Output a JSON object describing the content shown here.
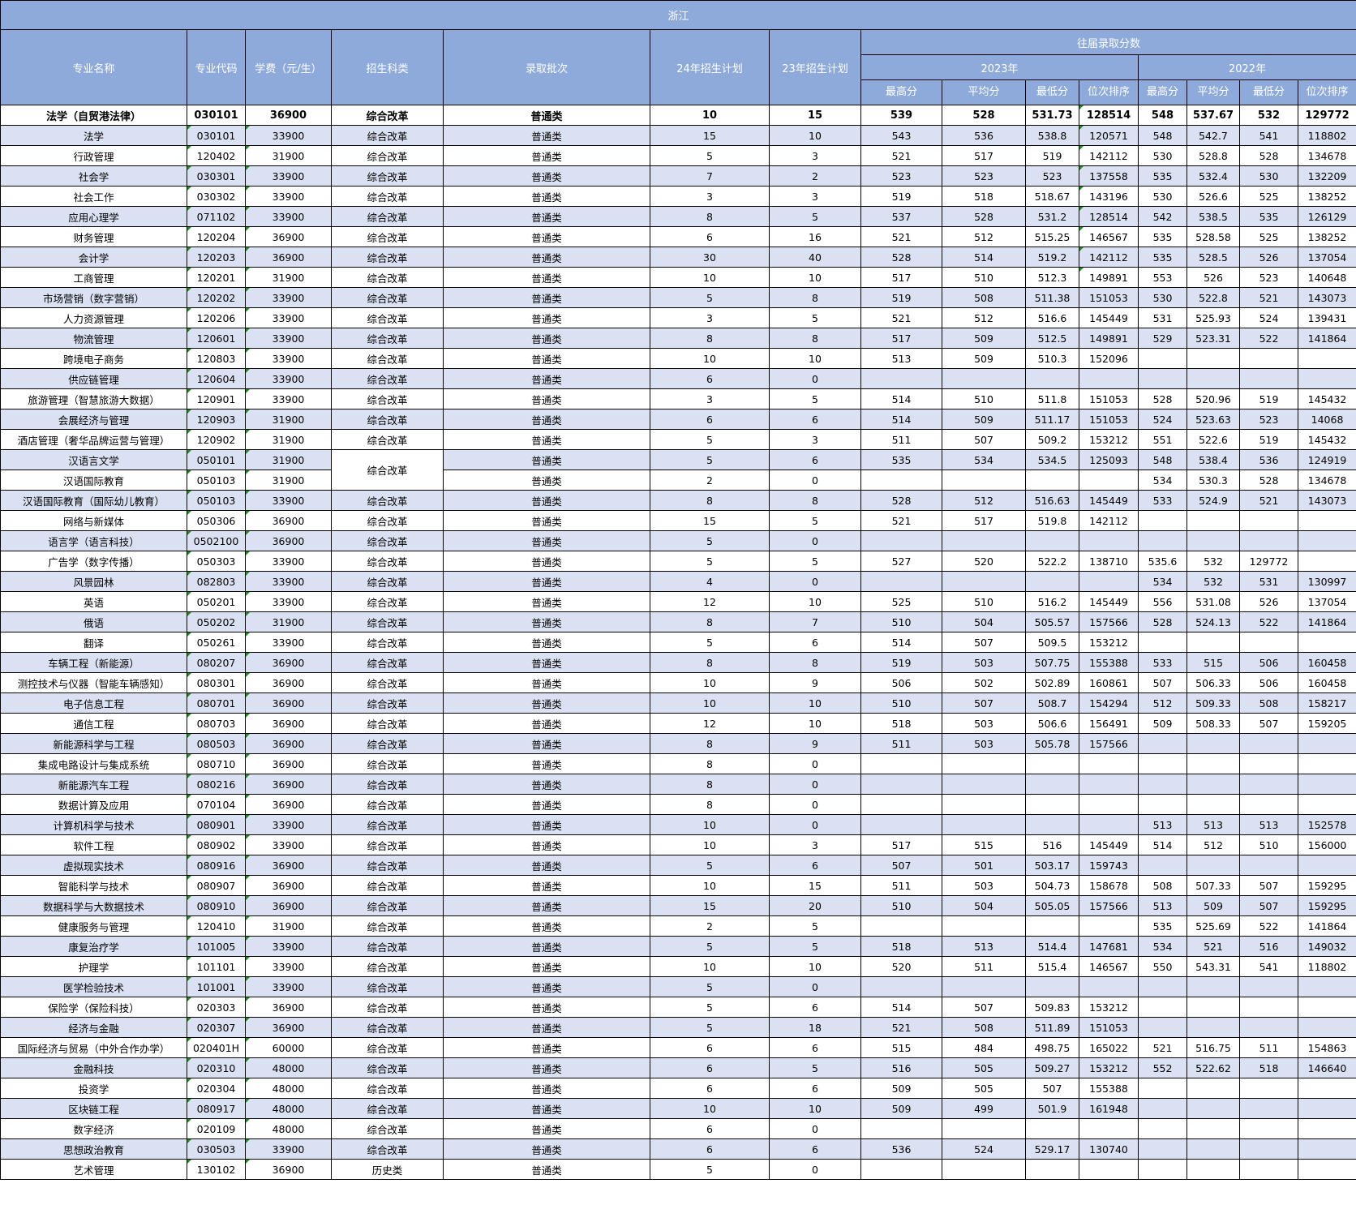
{
  "title": "浙江",
  "headers": {
    "name": "专业名称",
    "code": "专业代码",
    "fee": "学费（元/生）",
    "subject": "招生科类",
    "batch": "录取批次",
    "plan24": "24年招生计划",
    "plan23": "23年招生计划",
    "history": "往届录取分数",
    "year2023": "2023年",
    "year2022": "2022年",
    "max": "最高分",
    "avg": "平均分",
    "min": "最低分",
    "rank": "位次排序"
  },
  "colors": {
    "header_bg": "#8eaadb",
    "alt_row_bg": "#d9e1f2",
    "marker": "#1a8f1a"
  },
  "rows": [
    [
      "法学（自贸港法律）",
      "030101",
      "36900",
      "综合改革",
      "普通类",
      "10",
      "15",
      "539",
      "528",
      "531.73",
      "128514",
      "548",
      "537.67",
      "532",
      "129772"
    ],
    [
      "法学",
      "030101",
      "33900",
      "综合改革",
      "普通类",
      "15",
      "10",
      "543",
      "536",
      "538.8",
      "120571",
      "548",
      "542.7",
      "541",
      "118802"
    ],
    [
      "行政管理",
      "120402",
      "31900",
      "综合改革",
      "普通类",
      "5",
      "3",
      "521",
      "517",
      "519",
      "142112",
      "530",
      "528.8",
      "528",
      "134678"
    ],
    [
      "社会学",
      "030301",
      "33900",
      "综合改革",
      "普通类",
      "7",
      "2",
      "523",
      "523",
      "523",
      "137558",
      "535",
      "532.4",
      "530",
      "132209"
    ],
    [
      "社会工作",
      "030302",
      "33900",
      "综合改革",
      "普通类",
      "3",
      "3",
      "519",
      "518",
      "518.67",
      "143196",
      "530",
      "526.6",
      "525",
      "138252"
    ],
    [
      "应用心理学",
      "071102",
      "33900",
      "综合改革",
      "普通类",
      "8",
      "5",
      "537",
      "528",
      "531.2",
      "128514",
      "542",
      "538.5",
      "535",
      "126129"
    ],
    [
      "财务管理",
      "120204",
      "36900",
      "综合改革",
      "普通类",
      "6",
      "16",
      "521",
      "512",
      "515.25",
      "146567",
      "535",
      "528.58",
      "525",
      "138252"
    ],
    [
      "会计学",
      "120203",
      "36900",
      "综合改革",
      "普通类",
      "30",
      "40",
      "528",
      "514",
      "519.2",
      "142112",
      "535",
      "528.5",
      "526",
      "137054"
    ],
    [
      "工商管理",
      "120201",
      "31900",
      "综合改革",
      "普通类",
      "10",
      "10",
      "517",
      "510",
      "512.3",
      "149891",
      "553",
      "526",
      "523",
      "140648"
    ],
    [
      "市场营销（数字营销）",
      "120202",
      "33900",
      "综合改革",
      "普通类",
      "5",
      "8",
      "519",
      "508",
      "511.38",
      "151053",
      "530",
      "522.8",
      "521",
      "143073"
    ],
    [
      "人力资源管理",
      "120206",
      "33900",
      "综合改革",
      "普通类",
      "3",
      "5",
      "521",
      "512",
      "516.6",
      "145449",
      "531",
      "525.93",
      "524",
      "139431"
    ],
    [
      "物流管理",
      "120601",
      "33900",
      "综合改革",
      "普通类",
      "8",
      "8",
      "517",
      "509",
      "512.5",
      "149891",
      "529",
      "523.31",
      "522",
      "141864"
    ],
    [
      "跨境电子商务",
      "120803",
      "33900",
      "综合改革",
      "普通类",
      "10",
      "10",
      "513",
      "509",
      "510.3",
      "152096",
      "",
      "",
      "",
      ""
    ],
    [
      "供应链管理",
      "120604",
      "33900",
      "综合改革",
      "普通类",
      "6",
      "0",
      "",
      "",
      "",
      "",
      "",
      "",
      "",
      ""
    ],
    [
      "旅游管理（智慧旅游大数据）",
      "120901",
      "33900",
      "综合改革",
      "普通类",
      "3",
      "5",
      "514",
      "510",
      "511.8",
      "151053",
      "528",
      "520.96",
      "519",
      "145432"
    ],
    [
      "会展经济与管理",
      "120903",
      "31900",
      "综合改革",
      "普通类",
      "6",
      "6",
      "514",
      "509",
      "511.17",
      "151053",
      "524",
      "523.63",
      "523",
      "14068"
    ],
    [
      "酒店管理（奢华品牌运营与管理）",
      "120902",
      "31900",
      "综合改革",
      "普通类",
      "5",
      "3",
      "511",
      "507",
      "509.2",
      "153212",
      "551",
      "522.6",
      "519",
      "145432"
    ],
    [
      "汉语言文学",
      "050101",
      "31900",
      "综合改革",
      "普通类",
      "5",
      "6",
      "535",
      "534",
      "534.5",
      "125093",
      "548",
      "538.4",
      "536",
      "124919"
    ],
    [
      "汉语国际教育",
      "050103",
      "31900",
      "",
      "普通类",
      "2",
      "0",
      "",
      "",
      "",
      "",
      "534",
      "530.3",
      "528",
      "134678"
    ],
    [
      "汉语国际教育（国际幼儿教育）",
      "050103",
      "33900",
      "综合改革",
      "普通类",
      "8",
      "8",
      "528",
      "512",
      "516.63",
      "145449",
      "533",
      "524.9",
      "521",
      "143073"
    ],
    [
      "网络与新媒体",
      "050306",
      "36900",
      "综合改革",
      "普通类",
      "15",
      "5",
      "521",
      "517",
      "519.8",
      "142112",
      "",
      "",
      "",
      ""
    ],
    [
      "语言学（语言科技）",
      "0502100",
      "36900",
      "综合改革",
      "普通类",
      "5",
      "0",
      "",
      "",
      "",
      "",
      "",
      "",
      "",
      ""
    ],
    [
      "广告学（数字传播）",
      "050303",
      "33900",
      "综合改革",
      "普通类",
      "5",
      "5",
      "527",
      "520",
      "522.2",
      "138710",
      "535.6",
      "532",
      "129772",
      ""
    ],
    [
      "风景园林",
      "082803",
      "33900",
      "综合改革",
      "普通类",
      "4",
      "0",
      "",
      "",
      "",
      "",
      "534",
      "532",
      "531",
      "130997"
    ],
    [
      "英语",
      "050201",
      "33900",
      "综合改革",
      "普通类",
      "12",
      "10",
      "525",
      "510",
      "516.2",
      "145449",
      "556",
      "531.08",
      "526",
      "137054"
    ],
    [
      "俄语",
      "050202",
      "31900",
      "综合改革",
      "普通类",
      "8",
      "7",
      "510",
      "504",
      "505.57",
      "157566",
      "528",
      "524.13",
      "522",
      "141864"
    ],
    [
      "翻译",
      "050261",
      "33900",
      "综合改革",
      "普通类",
      "5",
      "6",
      "514",
      "507",
      "509.5",
      "153212",
      "",
      "",
      "",
      ""
    ],
    [
      "车辆工程（新能源）",
      "080207",
      "36900",
      "综合改革",
      "普通类",
      "8",
      "8",
      "519",
      "503",
      "507.75",
      "155388",
      "533",
      "515",
      "506",
      "160458"
    ],
    [
      "测控技术与仪器（智能车辆感知）",
      "080301",
      "36900",
      "综合改革",
      "普通类",
      "10",
      "9",
      "506",
      "502",
      "502.89",
      "160861",
      "507",
      "506.33",
      "506",
      "160458"
    ],
    [
      "电子信息工程",
      "080701",
      "36900",
      "综合改革",
      "普通类",
      "10",
      "10",
      "510",
      "507",
      "508.7",
      "154294",
      "512",
      "509.33",
      "508",
      "158217"
    ],
    [
      "通信工程",
      "080703",
      "36900",
      "综合改革",
      "普通类",
      "12",
      "10",
      "518",
      "503",
      "506.6",
      "156491",
      "509",
      "508.33",
      "507",
      "159205"
    ],
    [
      "新能源科学与工程",
      "080503",
      "36900",
      "综合改革",
      "普通类",
      "8",
      "9",
      "511",
      "503",
      "505.78",
      "157566",
      "",
      "",
      "",
      ""
    ],
    [
      "集成电路设计与集成系统",
      "080710",
      "36900",
      "综合改革",
      "普通类",
      "8",
      "0",
      "",
      "",
      "",
      "",
      "",
      "",
      "",
      ""
    ],
    [
      "新能源汽车工程",
      "080216",
      "36900",
      "综合改革",
      "普通类",
      "8",
      "0",
      "",
      "",
      "",
      "",
      "",
      "",
      "",
      ""
    ],
    [
      "数据计算及应用",
      "070104",
      "36900",
      "综合改革",
      "普通类",
      "8",
      "0",
      "",
      "",
      "",
      "",
      "",
      "",
      "",
      ""
    ],
    [
      "计算机科学与技术",
      "080901",
      "33900",
      "综合改革",
      "普通类",
      "10",
      "0",
      "",
      "",
      "",
      "",
      "513",
      "513",
      "513",
      "152578"
    ],
    [
      "软件工程",
      "080902",
      "33900",
      "综合改革",
      "普通类",
      "10",
      "3",
      "517",
      "515",
      "516",
      "145449",
      "514",
      "512",
      "510",
      "156000"
    ],
    [
      "虚拟现实技术",
      "080916",
      "36900",
      "综合改革",
      "普通类",
      "5",
      "6",
      "507",
      "501",
      "503.17",
      "159743",
      "",
      "",
      "",
      ""
    ],
    [
      "智能科学与技术",
      "080907",
      "36900",
      "综合改革",
      "普通类",
      "10",
      "15",
      "511",
      "503",
      "504.73",
      "158678",
      "508",
      "507.33",
      "507",
      "159295"
    ],
    [
      "数据科学与大数据技术",
      "080910",
      "36900",
      "综合改革",
      "普通类",
      "15",
      "20",
      "510",
      "504",
      "505.05",
      "157566",
      "513",
      "509",
      "507",
      "159295"
    ],
    [
      "健康服务与管理",
      "120410",
      "31900",
      "综合改革",
      "普通类",
      "2",
      "5",
      "",
      "",
      "",
      "",
      "535",
      "525.69",
      "522",
      "141864"
    ],
    [
      "康复治疗学",
      "101005",
      "33900",
      "综合改革",
      "普通类",
      "5",
      "5",
      "518",
      "513",
      "514.4",
      "147681",
      "534",
      "521",
      "516",
      "149032"
    ],
    [
      "护理学",
      "101101",
      "33900",
      "综合改革",
      "普通类",
      "10",
      "10",
      "520",
      "511",
      "515.4",
      "146567",
      "550",
      "543.31",
      "541",
      "118802"
    ],
    [
      "医学检验技术",
      "101001",
      "33900",
      "综合改革",
      "普通类",
      "5",
      "0",
      "",
      "",
      "",
      "",
      "",
      "",
      "",
      ""
    ],
    [
      "保险学（保险科技）",
      "020303",
      "36900",
      "综合改革",
      "普通类",
      "5",
      "6",
      "514",
      "507",
      "509.83",
      "153212",
      "",
      "",
      "",
      ""
    ],
    [
      "经济与金融",
      "020307",
      "36900",
      "综合改革",
      "普通类",
      "5",
      "18",
      "521",
      "508",
      "511.89",
      "151053",
      "",
      "",
      "",
      ""
    ],
    [
      "国际经济与贸易（中外合作办学）",
      "020401H",
      "60000",
      "综合改革",
      "普通类",
      "6",
      "6",
      "515",
      "484",
      "498.75",
      "165022",
      "521",
      "516.75",
      "511",
      "154863"
    ],
    [
      "金融科技",
      "020310",
      "48000",
      "综合改革",
      "普通类",
      "6",
      "5",
      "516",
      "505",
      "509.27",
      "153212",
      "552",
      "522.62",
      "518",
      "146640"
    ],
    [
      "投资学",
      "020304",
      "48000",
      "综合改革",
      "普通类",
      "6",
      "6",
      "509",
      "505",
      "507",
      "155388",
      "",
      "",
      "",
      ""
    ],
    [
      "区块链工程",
      "080917",
      "48000",
      "综合改革",
      "普通类",
      "10",
      "10",
      "509",
      "499",
      "501.9",
      "161948",
      "",
      "",
      "",
      ""
    ],
    [
      "数字经济",
      "020109",
      "48000",
      "综合改革",
      "普通类",
      "6",
      "0",
      "",
      "",
      "",
      "",
      "",
      "",
      "",
      ""
    ],
    [
      "思想政治教育",
      "030503",
      "33900",
      "综合改革",
      "普通类",
      "6",
      "6",
      "536",
      "524",
      "529.17",
      "130740",
      "",
      "",
      "",
      ""
    ],
    [
      "艺术管理",
      "130102",
      "36900",
      "历史类",
      "普通类",
      "5",
      "0",
      "",
      "",
      "",
      "",
      "",
      "",
      "",
      ""
    ]
  ]
}
